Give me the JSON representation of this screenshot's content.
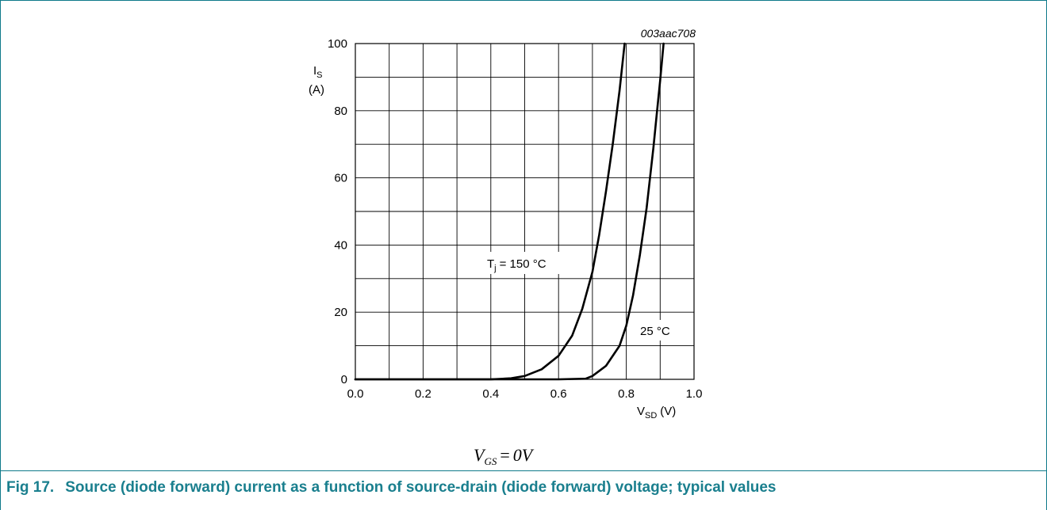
{
  "figure_code": "003aac708",
  "condition": {
    "symbol": "V",
    "subscript": "GS",
    "equals": "=",
    "value": "0",
    "unit": "V"
  },
  "caption": {
    "number": "Fig 17.",
    "text": "Source (diode forward) current as a function of source-drain (diode forward) voltage; typical values"
  },
  "chart_data": {
    "type": "line",
    "xlim": [
      0.0,
      1.0
    ],
    "ylim": [
      0,
      100
    ],
    "x_ticks": [
      "0.0",
      "0.2",
      "0.4",
      "0.6",
      "0.8",
      "1.0"
    ],
    "y_ticks": [
      "0",
      "20",
      "40",
      "60",
      "80",
      "100"
    ],
    "xlabel": {
      "main": "V",
      "sub": "SD",
      "unit": "(V)"
    },
    "ylabel": {
      "main": "I",
      "sub": "S",
      "unit": "(A)"
    },
    "grid": true,
    "series": [
      {
        "name": {
          "prefix": "T",
          "sub": "j",
          "rest": "= 150 °C"
        },
        "x": [
          0.0,
          0.4,
          0.46,
          0.5,
          0.55,
          0.6,
          0.64,
          0.67,
          0.7,
          0.72,
          0.74,
          0.76,
          0.78,
          0.795
        ],
        "y": [
          0,
          0,
          0.3,
          1,
          3,
          7,
          13,
          21,
          32,
          43,
          56,
          70,
          86,
          100
        ]
      },
      {
        "name": {
          "prefix": "",
          "sub": "",
          "rest": "25 °C"
        },
        "x": [
          0.0,
          0.6,
          0.68,
          0.7,
          0.74,
          0.78,
          0.8,
          0.82,
          0.84,
          0.86,
          0.87,
          0.88,
          0.89,
          0.9,
          0.91
        ],
        "y": [
          0,
          0,
          0.2,
          1,
          4,
          10,
          16,
          25,
          37,
          51,
          60,
          69,
          79,
          89,
          100
        ]
      }
    ]
  }
}
